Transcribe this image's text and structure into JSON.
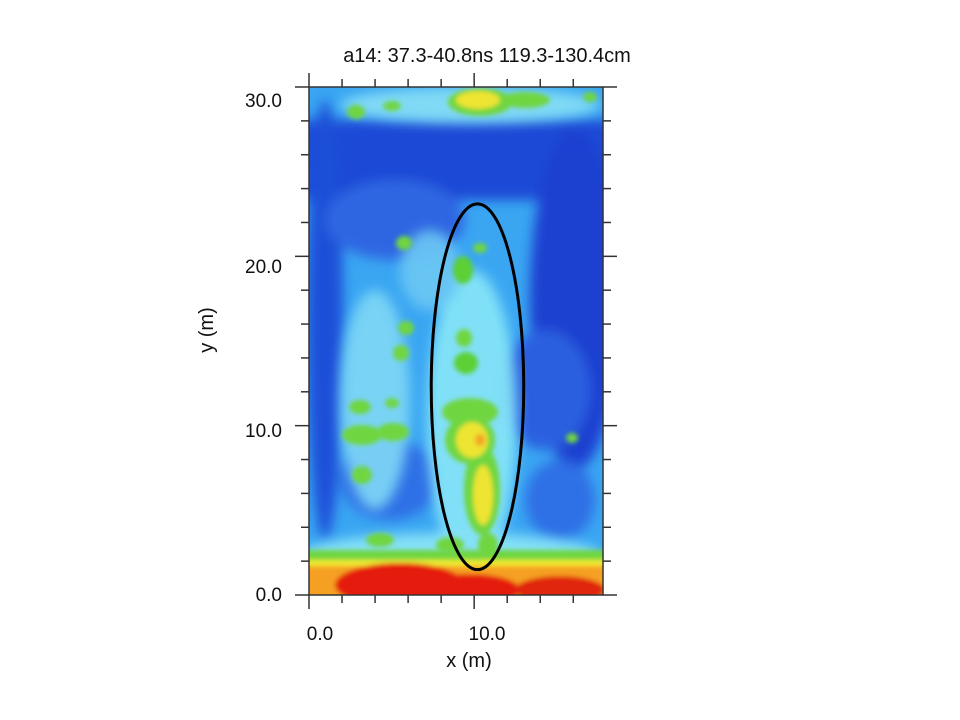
{
  "chart_data": {
    "type": "heatmap",
    "title": "a14:  37.3-40.8ns    119.3-130.4cm",
    "xlabel": "x (m)",
    "ylabel": "y (m)",
    "xlim": [
      0,
      17.8
    ],
    "ylim": [
      0,
      30.0
    ],
    "x_ticks": [
      {
        "value": 0,
        "label": "0.0"
      },
      {
        "value": 10,
        "label": "10.0"
      }
    ],
    "y_ticks": [
      {
        "value": 0,
        "label": "0.0"
      },
      {
        "value": 10,
        "label": "10.0"
      },
      {
        "value": 20,
        "label": "20.0"
      },
      {
        "value": 30,
        "label": "30.0"
      }
    ],
    "colorscale": [
      "#1530c8",
      "#2f6fe6",
      "#3aa6f2",
      "#88e7f8",
      "#9be85a",
      "#55d030",
      "#f0ea30",
      "#f59420",
      "#e51c10"
    ],
    "highlight_ellipse": {
      "cx": 10.2,
      "cy": 12.3,
      "rx": 2.8,
      "ry": 10.8,
      "color": "#000000"
    }
  }
}
